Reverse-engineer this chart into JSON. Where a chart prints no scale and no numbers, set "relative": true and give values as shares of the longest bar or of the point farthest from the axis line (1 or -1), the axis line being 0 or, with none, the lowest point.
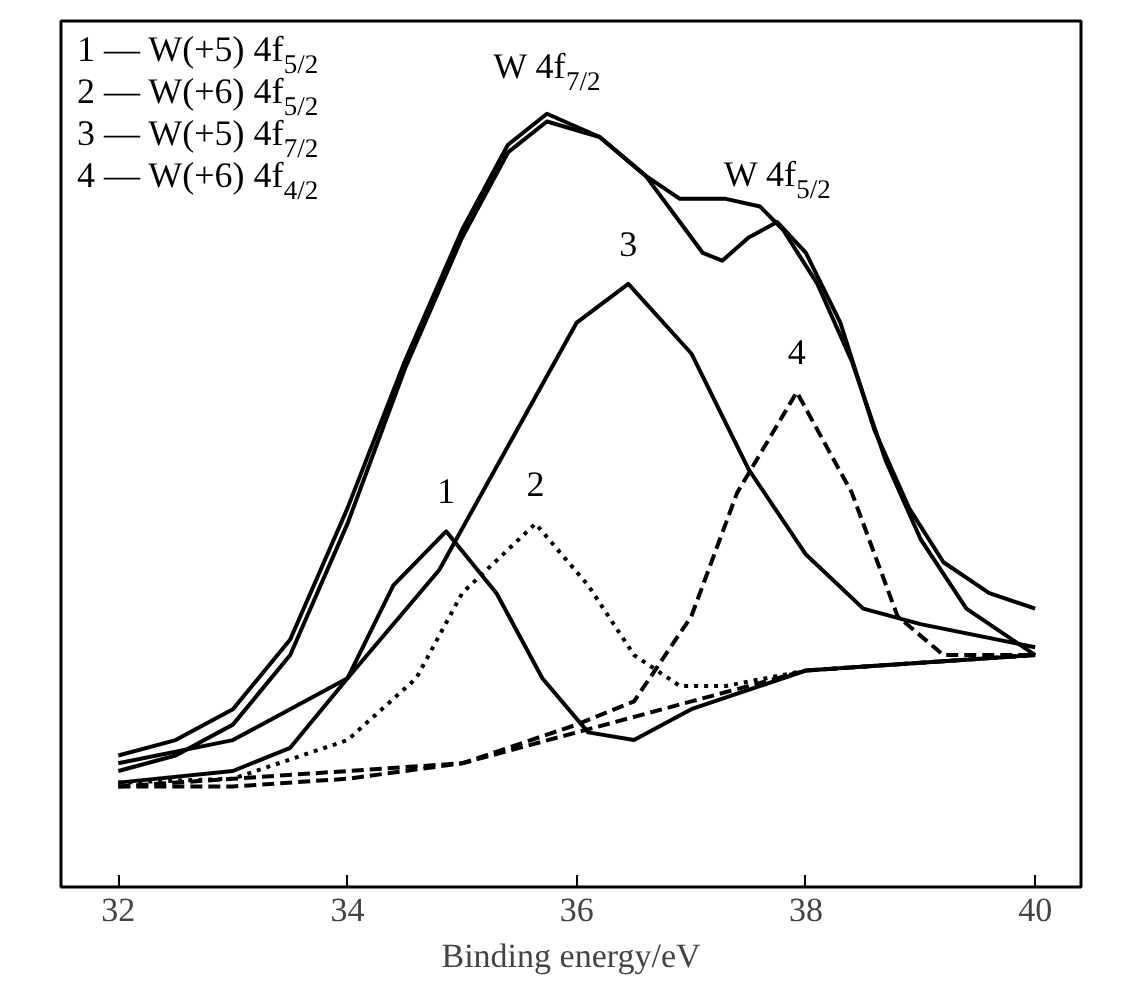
{
  "chart_data": {
    "type": "line",
    "relative": true,
    "xlabel": "Binding energy/eV",
    "xlim": [
      31.5,
      40.4
    ],
    "xticks": [
      32,
      34,
      36,
      38,
      40
    ],
    "tick_labels": "x",
    "grid": false,
    "marker": "none",
    "series": [
      {
        "color": "#000000",
        "line_style": "solid",
        "x": [
          32,
          32.5,
          33,
          33.5,
          34,
          34.5,
          35,
          35.4,
          35.74,
          36.2,
          36.6,
          36.9,
          37.1,
          37.27,
          37.5,
          37.75,
          38.0,
          38.3,
          38.6,
          38.9,
          39.2,
          39.6,
          40
        ],
        "values": [
          0.17,
          0.19,
          0.23,
          0.32,
          0.49,
          0.68,
          0.85,
          0.96,
          1.0,
          0.97,
          0.92,
          0.86,
          0.82,
          0.81,
          0.84,
          0.86,
          0.82,
          0.73,
          0.59,
          0.49,
          0.42,
          0.38,
          0.36
        ]
      },
      {
        "color": "#000000",
        "line_style": "solid",
        "x": [
          32,
          32.5,
          33,
          33.5,
          34,
          34.5,
          35,
          35.4,
          35.74,
          36.2,
          36.6,
          36.9,
          37.3,
          37.6,
          37.8,
          38.1,
          38.4,
          38.7,
          39.0,
          39.4,
          39.8,
          40
        ],
        "values": [
          0.15,
          0.17,
          0.21,
          0.3,
          0.47,
          0.67,
          0.84,
          0.95,
          0.99,
          0.97,
          0.92,
          0.89,
          0.89,
          0.88,
          0.85,
          0.78,
          0.68,
          0.55,
          0.45,
          0.36,
          0.32,
          0.3
        ]
      },
      {
        "color": "#000000",
        "line_style": "dashed",
        "x": [
          32,
          33,
          34,
          35,
          36,
          37,
          38,
          39,
          40
        ],
        "values": [
          0.13,
          0.13,
          0.14,
          0.16,
          0.2,
          0.24,
          0.28,
          0.29,
          0.3
        ]
      },
      {
        "color": "#000000",
        "line_style": "solid",
        "x": [
          32,
          33,
          33.5,
          34,
          34.4,
          34.86,
          35.3,
          35.7,
          36.1,
          36.5,
          37,
          38,
          39,
          40
        ],
        "values": [
          0.135,
          0.15,
          0.18,
          0.27,
          0.39,
          0.46,
          0.38,
          0.27,
          0.2,
          0.19,
          0.23,
          0.28,
          0.29,
          0.3
        ]
      },
      {
        "color": "#000000",
        "line_style": "dotted",
        "x": [
          32,
          33,
          34,
          34.6,
          35.0,
          35.64,
          36.1,
          36.5,
          36.9,
          37.3,
          38,
          39,
          40
        ],
        "values": [
          0.135,
          0.14,
          0.19,
          0.27,
          0.38,
          0.47,
          0.39,
          0.3,
          0.26,
          0.26,
          0.28,
          0.29,
          0.3
        ]
      },
      {
        "color": "#000000",
        "line_style": "solid",
        "x": [
          32,
          33,
          34,
          34.8,
          35.4,
          36,
          36.45,
          37,
          37.5,
          38,
          38.5,
          39,
          40
        ],
        "values": [
          0.16,
          0.19,
          0.27,
          0.41,
          0.57,
          0.73,
          0.78,
          0.69,
          0.54,
          0.43,
          0.36,
          0.34,
          0.31
        ]
      },
      {
        "color": "#000000",
        "line_style": "dashed",
        "x": [
          32,
          35,
          36,
          36.5,
          37,
          37.4,
          37.92,
          38.4,
          38.8,
          39.2,
          40
        ],
        "values": [
          0.13,
          0.16,
          0.21,
          0.24,
          0.35,
          0.51,
          0.64,
          0.51,
          0.35,
          0.3,
          0.3
        ]
      }
    ],
    "annotations": [
      "1 — W(+5) 4f$_{5/2}$",
      "2 — W(+6) 4f$_{5/2}$",
      "3 — W(+5) 4f$_{7/2}$",
      "4 — W(+6) 4f$_{4/2}$",
      {
        "text": "W 4f$_{7/2}$",
        "x": 35.74,
        "y": 1.0
      },
      {
        "text": "W 4f$_{5/2}$",
        "x": 37.75,
        "y": 0.86
      },
      {
        "text": "1",
        "x": 34.86,
        "y": 0.46
      },
      {
        "text": "2",
        "x": 35.64,
        "y": 0.47
      },
      {
        "text": "3",
        "x": 36.45,
        "y": 0.78
      },
      {
        "text": "4",
        "x": 37.92,
        "y": 0.64
      }
    ]
  }
}
